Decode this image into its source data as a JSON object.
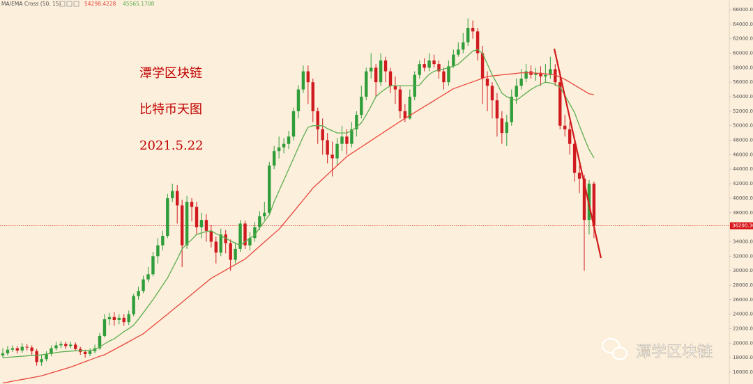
{
  "chart_data": {
    "type": "candlestick",
    "indicator": "MA/EMA Cross (50, 15)",
    "up_color": "#2f9e3a",
    "down_color": "#cf1a1f",
    "open": [
      18300,
      18600,
      19100,
      19300,
      19000,
      19500,
      19400,
      18900,
      17400,
      17800,
      18500,
      19300,
      19700,
      19900,
      19600,
      19800,
      19200,
      18800,
      18500,
      18900,
      19300,
      21000,
      23300,
      23600,
      23200,
      23500,
      22900,
      24000,
      26500,
      27200,
      28800,
      29500,
      32000,
      33500,
      34800,
      40000,
      41000,
      39000,
      33500,
      39500,
      38800,
      36000,
      37000,
      35500,
      34000,
      32500,
      35000,
      33800,
      31500,
      33000,
      36500,
      33500,
      34500,
      36000,
      37500,
      38000,
      44500,
      46500,
      47000,
      47500,
      48500,
      52000,
      55000,
      57500,
      56000,
      52000,
      49500,
      48000,
      46000,
      45500,
      47500,
      48500,
      47500,
      49500,
      51500,
      54000,
      57500,
      58000,
      56000,
      59000,
      57500,
      55500,
      55000,
      52000,
      51000,
      54000,
      57000,
      58500,
      58000,
      59000,
      58500,
      57500,
      56000,
      58200,
      59800,
      60500,
      61500,
      63500,
      63000,
      60000,
      56500,
      55500,
      53500,
      51000,
      49000,
      50500,
      54000,
      55500,
      56500,
      57500,
      57000,
      57300,
      56800,
      57000,
      57800,
      56000,
      50000,
      49500,
      47500,
      43500,
      42700,
      37000,
      42000
    ],
    "high": [
      19300,
      19600,
      19700,
      19600,
      20000,
      19900,
      19700,
      19200,
      18400,
      18900,
      19700,
      20200,
      20300,
      20200,
      20200,
      20100,
      19500,
      19100,
      19300,
      19800,
      21400,
      24000,
      24200,
      24300,
      24000,
      24000,
      24500,
      26800,
      27800,
      29300,
      30500,
      32600,
      34500,
      35500,
      40600,
      42000,
      41800,
      39800,
      40300,
      40000,
      39500,
      38000,
      37800,
      36300,
      34700,
      35800,
      35600,
      34300,
      33900,
      37000,
      36900,
      35300,
      36700,
      38200,
      39500,
      45000,
      47200,
      48500,
      48300,
      49300,
      52500,
      55600,
      58300,
      58300,
      56500,
      52500,
      51000,
      49000,
      47800,
      48300,
      50000,
      49500,
      50500,
      52000,
      55500,
      58000,
      60000,
      58500,
      60000,
      59500,
      58000,
      56800,
      55500,
      53000,
      55000,
      57500,
      59000,
      59300,
      60000,
      59800,
      59000,
      58000,
      59000,
      60500,
      61500,
      62800,
      64800,
      64500,
      63500,
      61000,
      57500,
      56000,
      54500,
      52000,
      51500,
      55000,
      56500,
      57800,
      58500,
      58300,
      58000,
      58200,
      58500,
      59500,
      58500,
      57500,
      51500,
      50500,
      48000,
      44500,
      43200,
      42500,
      42300
    ],
    "low": [
      18000,
      18300,
      18800,
      18600,
      18700,
      19000,
      18400,
      16900,
      16900,
      17500,
      18200,
      19000,
      19300,
      19200,
      19300,
      18900,
      18400,
      18000,
      18200,
      18600,
      19100,
      20800,
      22500,
      22400,
      22600,
      22400,
      22500,
      23700,
      26000,
      26900,
      28400,
      29200,
      31000,
      32800,
      34500,
      39500,
      36500,
      30500,
      33000,
      36800,
      35000,
      34500,
      34000,
      33200,
      31000,
      32000,
      32400,
      30000,
      31000,
      32600,
      33000,
      32800,
      34000,
      35600,
      37000,
      37800,
      44000,
      45500,
      46200,
      46800,
      48000,
      51000,
      54500,
      53000,
      50500,
      47500,
      46000,
      44800,
      43000,
      44500,
      46500,
      46000,
      47000,
      48500,
      51000,
      53500,
      56500,
      54000,
      55500,
      56000,
      54500,
      53000,
      51000,
      50500,
      50800,
      53500,
      56500,
      57500,
      57500,
      58000,
      56500,
      55000,
      55500,
      58000,
      59500,
      60000,
      61000,
      62000,
      59000,
      53000,
      52000,
      51000,
      48500,
      47500,
      47200,
      50000,
      53000,
      55000,
      56000,
      56500,
      56200,
      55500,
      56000,
      56500,
      55500,
      49500,
      48500,
      46000,
      42300,
      40700,
      30000,
      35000,
      34500
    ],
    "close": [
      18600,
      19100,
      19300,
      19000,
      19500,
      19400,
      18900,
      17400,
      17800,
      18500,
      19300,
      19700,
      19900,
      19600,
      19800,
      19200,
      18800,
      18500,
      18900,
      19300,
      21000,
      23300,
      23600,
      23200,
      23500,
      22900,
      24000,
      26500,
      27200,
      28800,
      29500,
      32000,
      33500,
      34800,
      40000,
      41000,
      39000,
      33500,
      39500,
      38800,
      36000,
      37000,
      35500,
      34000,
      32500,
      35000,
      33800,
      31500,
      33000,
      36500,
      33500,
      34500,
      36000,
      37500,
      38000,
      44500,
      46500,
      47000,
      47500,
      48500,
      52000,
      55000,
      57500,
      56000,
      52000,
      49500,
      48000,
      46000,
      45500,
      47500,
      48500,
      47500,
      49500,
      51500,
      54000,
      57500,
      58000,
      56000,
      59000,
      57500,
      55500,
      55000,
      52000,
      51000,
      54000,
      57000,
      58500,
      58000,
      59000,
      58500,
      57500,
      56000,
      58200,
      59800,
      60500,
      61500,
      63500,
      63000,
      60000,
      56500,
      55500,
      53500,
      51000,
      49000,
      50500,
      54000,
      55500,
      56500,
      57500,
      57000,
      57300,
      56800,
      57000,
      57800,
      56000,
      50000,
      49500,
      47500,
      43500,
      42700,
      37000,
      42000,
      36200.3
    ],
    "series": [
      {
        "color": "#e9463c",
        "values": [
          14500,
          14620,
          14750,
          14870,
          15000,
          15120,
          15250,
          15370,
          15500,
          15700,
          15900,
          16100,
          16300,
          16500,
          16700,
          16950,
          17200,
          17450,
          17700,
          17950,
          18200,
          18400,
          18760,
          19120,
          19480,
          19840,
          20200,
          20580,
          20940,
          21300,
          21840,
          22380,
          22920,
          23460,
          24000,
          24560,
          25100,
          25650,
          26200,
          26750,
          27300,
          27850,
          28400,
          28950,
          29330,
          29710,
          30090,
          30470,
          30850,
          31230,
          31600,
          32190,
          32780,
          33370,
          33960,
          34550,
          35140,
          35700,
          36510,
          37320,
          38130,
          38940,
          39750,
          40560,
          41400,
          42020,
          42640,
          43260,
          43880,
          44500,
          45120,
          45750,
          46190,
          46630,
          47070,
          47510,
          47950,
          48390,
          48830,
          49270,
          49710,
          50150,
          50590,
          51000,
          51410,
          51820,
          52230,
          52640,
          53050,
          53460,
          53870,
          54280,
          54690,
          55100,
          55340,
          55580,
          55820,
          56060,
          56300,
          56540,
          56800,
          56870,
          56940,
          57010,
          57080,
          57150,
          57220,
          57300,
          57300,
          57300,
          57250,
          57200,
          57150,
          57100,
          57000,
          56700,
          56400,
          56000,
          55600,
          55200,
          54800,
          54400,
          54298.4228
        ]
      },
      {
        "color": "#5cae50",
        "values": [
          18000,
          18050,
          18100,
          18150,
          18200,
          18250,
          18300,
          18300,
          18400,
          18500,
          18600,
          18700,
          18800,
          18850,
          18900,
          18950,
          19000,
          19000,
          19000,
          19100,
          19500,
          19900,
          20300,
          20600,
          21100,
          21600,
          22000,
          22500,
          23300,
          24200,
          25100,
          26000,
          27000,
          28000,
          29000,
          30300,
          31600,
          33000,
          33700,
          34300,
          35000,
          35200,
          35400,
          35500,
          35100,
          34800,
          34500,
          34100,
          33800,
          33500,
          34000,
          34500,
          34900,
          35900,
          36800,
          37700,
          39500,
          41000,
          42500,
          44000,
          45500,
          47000,
          48500,
          49800,
          50000,
          50000,
          50000,
          49600,
          49300,
          49000,
          49000,
          49000,
          49300,
          49800,
          50400,
          51500,
          52700,
          54000,
          54600,
          55100,
          55500,
          55500,
          55500,
          55500,
          55500,
          55500,
          55600,
          56400,
          57100,
          57500,
          57700,
          57800,
          58000,
          58200,
          58500,
          59100,
          59700,
          60300,
          60500,
          60000,
          58500,
          57000,
          55800,
          54500,
          54000,
          53700,
          53500,
          54000,
          54500,
          55000,
          55400,
          55700,
          56000,
          55900,
          55700,
          55300,
          54200,
          53000,
          51800,
          50000,
          48300,
          46700,
          45565.1708
        ]
      }
    ],
    "price_line": {
      "value": 36200.3,
      "label": "36200.30"
    },
    "ylim": [
      14370,
      67340
    ],
    "yticks": [
      {
        "value": 16000,
        "label": "16000.00"
      },
      {
        "value": 18000,
        "label": "18000.00"
      },
      {
        "value": 20000,
        "label": "20000.00"
      },
      {
        "value": 22000,
        "label": "22000.00"
      },
      {
        "value": 24000,
        "label": "24000.00"
      },
      {
        "value": 26000,
        "label": "26000.00"
      },
      {
        "value": 28000,
        "label": "28000.00"
      },
      {
        "value": 30000,
        "label": "30000.00"
      },
      {
        "value": 32000,
        "label": "32000.00"
      },
      {
        "value": 34000,
        "label": "34000.00"
      },
      {
        "value": 36000,
        "label": "36000.00"
      },
      {
        "value": 38000,
        "label": "38000.00"
      },
      {
        "value": 40000,
        "label": "40000.00"
      },
      {
        "value": 42000,
        "label": "42000.00"
      },
      {
        "value": 44000,
        "label": "44000.00"
      },
      {
        "value": 46000,
        "label": "46000.00"
      },
      {
        "value": 48000,
        "label": "48000.00"
      },
      {
        "value": 50000,
        "label": "50000.00"
      },
      {
        "value": 52000,
        "label": "52000.00"
      },
      {
        "value": 54000,
        "label": "54000.00"
      },
      {
        "value": 56000,
        "label": "56000.00"
      },
      {
        "value": 58000,
        "label": "58000.00"
      },
      {
        "value": 60000,
        "label": "60000.00"
      },
      {
        "value": 62000,
        "label": "62000.00"
      },
      {
        "value": 64000,
        "label": "64000.00"
      },
      {
        "value": 66000,
        "label": "66000.00"
      }
    ],
    "annotations": [
      "潭学区块链",
      "比特币天图",
      "2021.5.22"
    ],
    "watermark": "潭学区块链"
  }
}
